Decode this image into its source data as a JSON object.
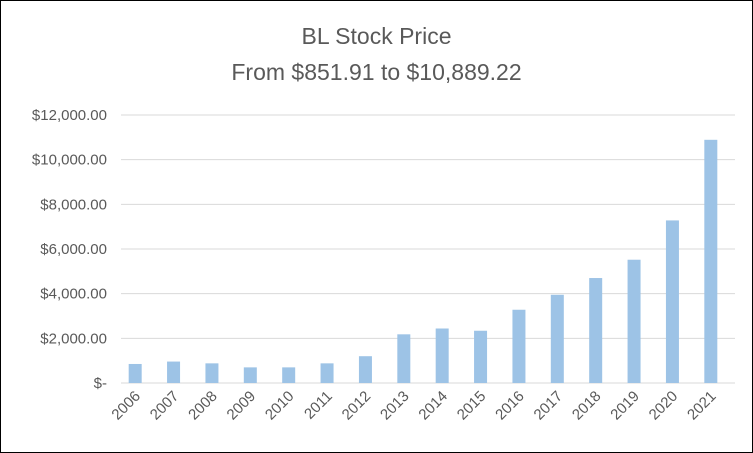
{
  "chart_data": {
    "type": "bar",
    "title": "BL Stock Price",
    "subtitle": "From $851.91 to $10,889.22",
    "categories": [
      "2006",
      "2007",
      "2008",
      "2009",
      "2010",
      "2011",
      "2012",
      "2013",
      "2014",
      "2015",
      "2016",
      "2017",
      "2018",
      "2019",
      "2020",
      "2021"
    ],
    "values": [
      851.91,
      960,
      880,
      700,
      700,
      880,
      1200,
      2180,
      2440,
      2340,
      3280,
      3950,
      4700,
      5520,
      7280,
      10889.22
    ],
    "ylim": [
      0,
      12000
    ],
    "yticks": [
      0,
      2000,
      4000,
      6000,
      8000,
      10000,
      12000
    ],
    "ytick_labels": [
      "$-",
      "$2,000.00",
      "$4,000.00",
      "$6,000.00",
      "$8,000.00",
      "$10,000.00",
      "$12,000.00"
    ],
    "grid": true,
    "bar_color": "#9DC3E6",
    "grid_color": "#D9D9D9"
  }
}
